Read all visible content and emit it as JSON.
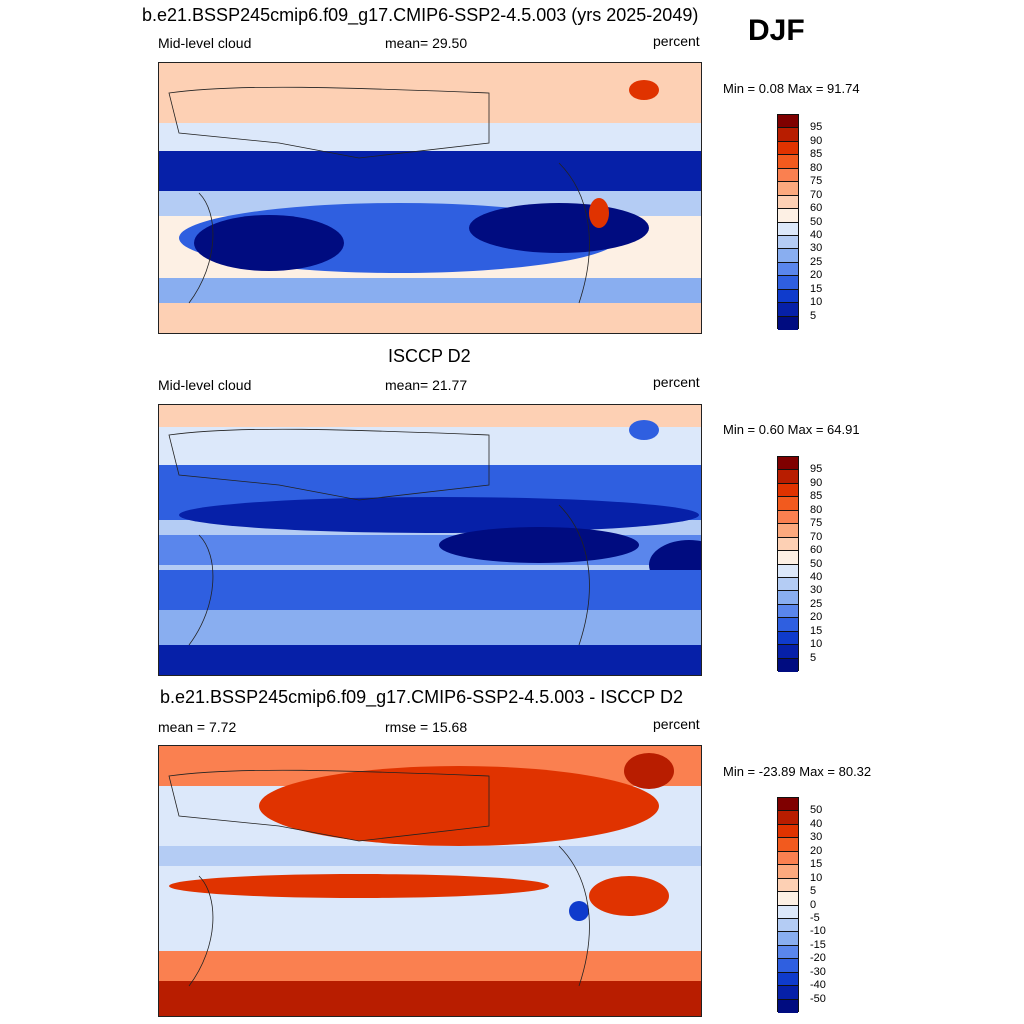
{
  "season": "DJF",
  "units": "percent",
  "panels": [
    {
      "title": "b.e21.BSSP245cmip6.f09_g17.CMIP6-SSP2-4.5.003 (yrs 2025-2049)",
      "left_label": "Mid-level cloud",
      "center_label": "mean=  29.50",
      "right_label": "percent",
      "minmax": "Min =   0.08 Max =  91.74",
      "colorbar_labels": [
        "95",
        "90",
        "85",
        "80",
        "75",
        "70",
        "60",
        "50",
        "40",
        "30",
        "25",
        "20",
        "15",
        "10",
        "5"
      ]
    },
    {
      "title": "ISCCP D2",
      "left_label": "Mid-level cloud",
      "center_label": "mean=  21.77",
      "right_label": "percent",
      "minmax": "Min =   0.60 Max =  64.91",
      "colorbar_labels": [
        "95",
        "90",
        "85",
        "80",
        "75",
        "70",
        "60",
        "50",
        "40",
        "30",
        "25",
        "20",
        "15",
        "10",
        "5"
      ]
    },
    {
      "title": "b.e21.BSSP245cmip6.f09_g17.CMIP6-SSP2-4.5.003 - ISCCP D2",
      "left_label": "mean =   7.72",
      "center_label": "rmse =  15.68",
      "right_label": "percent",
      "minmax": "Min = -23.89 Max =  80.32",
      "colorbar_labels": [
        "50",
        "40",
        "30",
        "20",
        "15",
        "10",
        "5",
        "0",
        "-5",
        "-10",
        "-15",
        "-20",
        "-30",
        "-40",
        "-50"
      ]
    }
  ],
  "palette": [
    "#7f0000",
    "#b81d00",
    "#e03300",
    "#f25a1e",
    "#fa8050",
    "#fca97e",
    "#fdd0b4",
    "#fdf0e4",
    "#dce8fa",
    "#b4ccf4",
    "#89aef0",
    "#5a86ec",
    "#2f5fe0",
    "#0f3bcc",
    "#0620a8",
    "#000c80"
  ]
}
